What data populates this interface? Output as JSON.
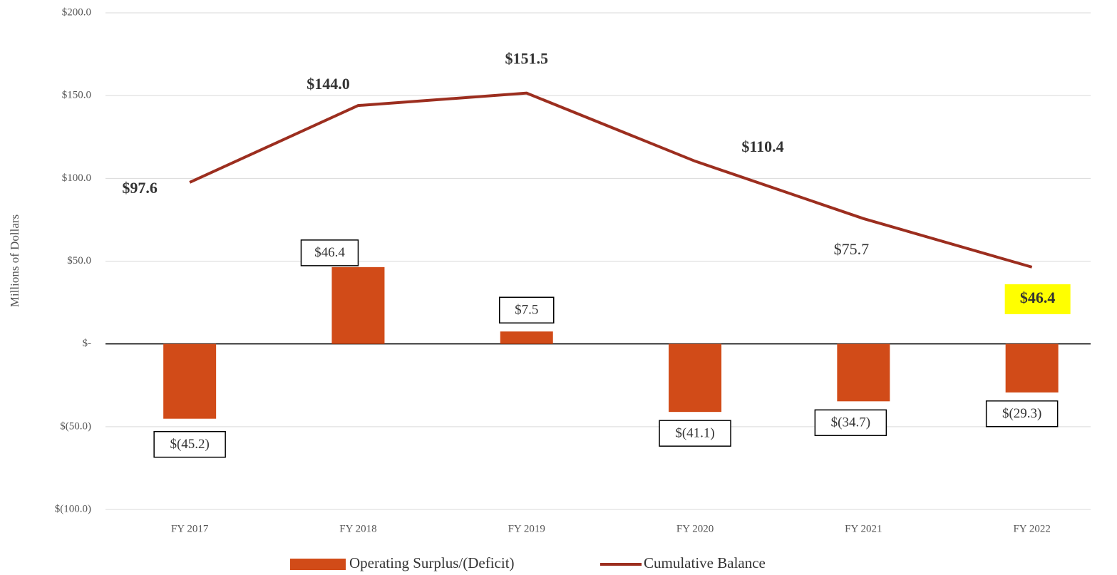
{
  "chart_data": {
    "type": "bar",
    "categories": [
      "FY 2017",
      "FY 2018",
      "FY 2019",
      "FY 2020",
      "FY 2021",
      "FY 2022"
    ],
    "y_axis_label": "Millions of Dollars",
    "ylim": [
      -100,
      200
    ],
    "yticks": [
      {
        "value": 200,
        "label": "$200.0"
      },
      {
        "value": 150,
        "label": "$150.0"
      },
      {
        "value": 100,
        "label": "$100.0"
      },
      {
        "value": 50,
        "label": "$50.0"
      },
      {
        "value": 0,
        "label": "$-"
      },
      {
        "value": -50,
        "label": "$(50.0)"
      },
      {
        "value": -100,
        "label": "$(100.0)"
      }
    ],
    "grid": true,
    "legend": "bottom",
    "series": [
      {
        "name": "Operating Surplus/(Deficit)",
        "type": "bar",
        "color": "#d14b18",
        "values": [
          -45.2,
          46.4,
          7.5,
          -41.1,
          -34.7,
          -29.3
        ],
        "value_labels": [
          "$(45.2)",
          "$46.4",
          "$7.5",
          "$(41.1)",
          "$(34.7)",
          "$(29.3)"
        ]
      },
      {
        "name": "Cumulative Balance",
        "type": "line",
        "color": "#9c2e1f",
        "values": [
          97.6,
          144.0,
          151.5,
          110.4,
          75.7,
          46.4
        ],
        "value_labels": [
          "$97.6",
          "$144.0",
          "$151.5",
          "$110.4",
          "$75.7",
          "$46.4"
        ]
      }
    ]
  }
}
